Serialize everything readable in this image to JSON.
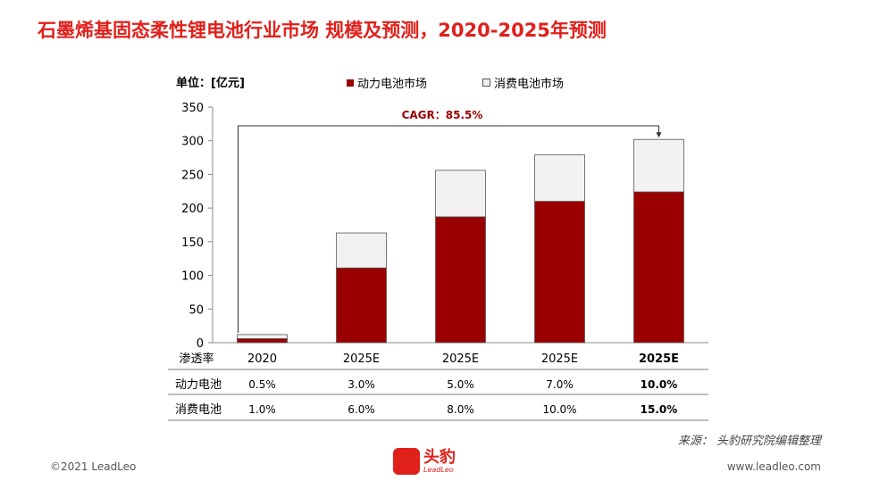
{
  "title": "石墨烯基固态柔性锂电池行业市场 规模及预测，2020-2025年预测",
  "unit": "单位：[亿元]",
  "legend": {
    "power": "动力电池市场",
    "consumer": "消费电池市场"
  },
  "cagr": "CAGR：85.5%",
  "source": "来源：   头豹研究院编辑整理",
  "footer": {
    "copyright": "©2021 LeadLeo",
    "website": "www.leadleo.com",
    "logo_text": "头豹",
    "logo_sub": "LeadLeo"
  },
  "colors": {
    "title": "#e0201b",
    "power": "#9b0000",
    "consumer": "#f2f2f2",
    "border": "#555555"
  },
  "chart_data": {
    "type": "bar",
    "stacked": true,
    "categories": [
      "2020",
      "2025E",
      "2025E",
      "2025E",
      "2025E"
    ],
    "series": [
      {
        "name": "动力电池市场",
        "values": [
          6,
          111,
          187,
          210,
          224
        ]
      },
      {
        "name": "消费电池市场",
        "values": [
          6,
          52,
          69,
          69,
          78
        ]
      }
    ],
    "ylim": [
      0,
      350
    ],
    "yticks": [
      0,
      50,
      100,
      150,
      200,
      250,
      300,
      350
    ],
    "xlabel": "",
    "ylabel": ""
  },
  "table": {
    "header_label": "渗透率",
    "rows": [
      {
        "label": "动力电池",
        "values": [
          "0.5%",
          "3.0%",
          "5.0%",
          "7.0%",
          "10.0%"
        ]
      },
      {
        "label": "消费电池",
        "values": [
          "1.0%",
          "6.0%",
          "8.0%",
          "10.0%",
          "15.0%"
        ]
      }
    ],
    "bold_last": true
  }
}
